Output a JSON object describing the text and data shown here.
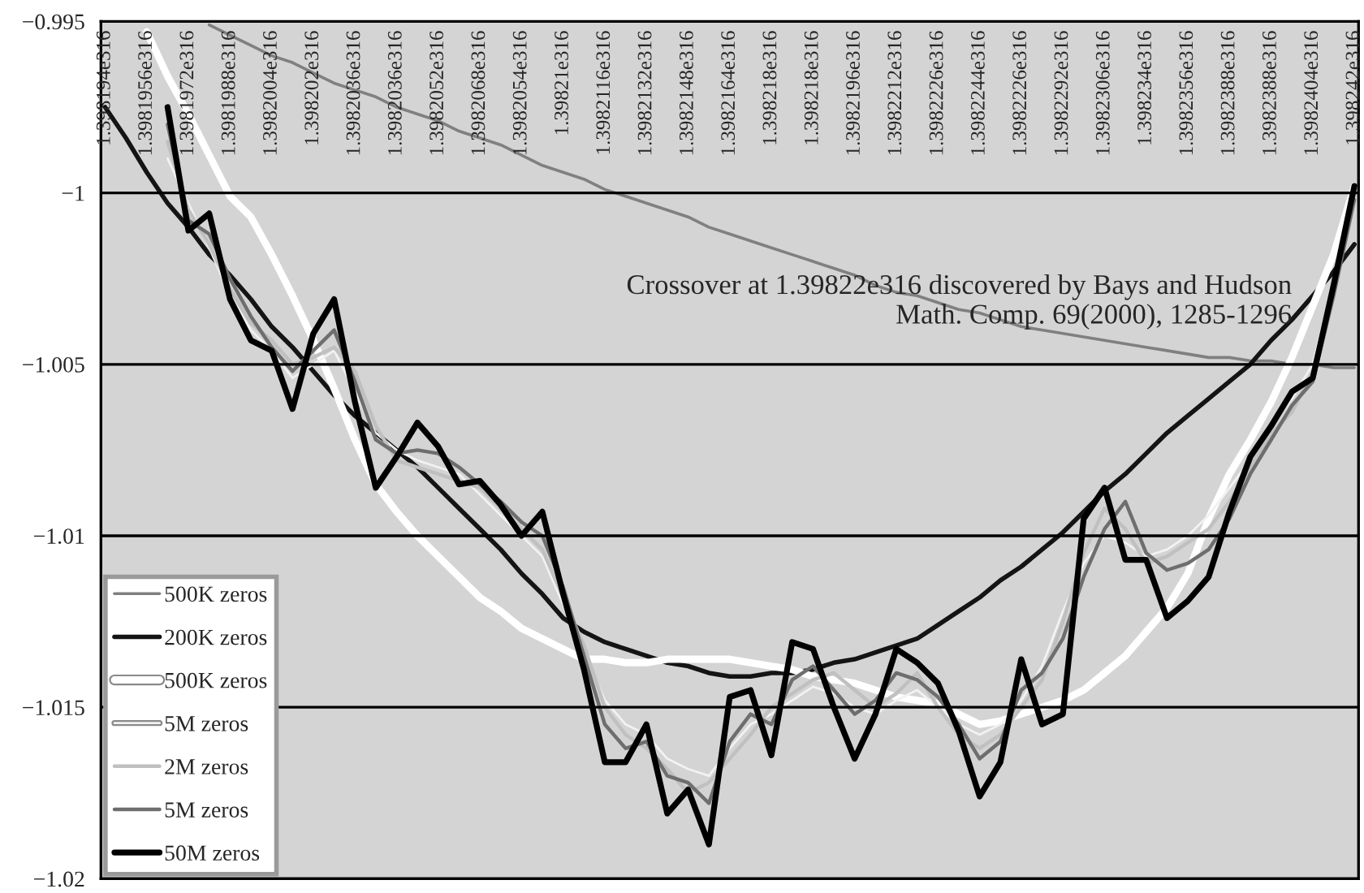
{
  "chart_data": {
    "type": "line",
    "categories": [
      "1.398194e316",
      null,
      "1.3981956e316",
      null,
      "1.3981972e316",
      null,
      "1.3981988e316",
      null,
      "1.3982004e316",
      null,
      "1.398202e316",
      null,
      "1.3982036e316",
      null,
      "1.3982036e316",
      null,
      "1.3982052e316",
      null,
      "1.3982068e316",
      null,
      "1.3982054e316",
      null,
      "1.39821e316",
      null,
      "1.3982116e316",
      null,
      "1.3982132e316",
      null,
      "1.3982148e316",
      null,
      "1.3982164e316",
      null,
      "1.398218e316",
      null,
      "1.398218e316",
      null,
      "1.3982196e316",
      null,
      "1.3982212e316",
      null,
      "1.3982226e316",
      null,
      "1.3982244e316",
      null,
      "1.3982226e316",
      null,
      "1.3982292e316",
      null,
      "1.3982306e316",
      null,
      "1.398234e316",
      null,
      "1.3982356e316",
      null,
      "1.3982388e316",
      null,
      "1.3982388e316",
      null,
      "1.3982404e316",
      null,
      "1.398242e316"
    ],
    "series": [
      {
        "name": "500K zeros",
        "color": "#808080",
        "values": [
          null,
          null,
          null,
          null,
          null,
          -0.9951,
          -0.9954,
          -0.9957,
          -0.996,
          -0.9962,
          -0.9965,
          -0.9968,
          -0.997,
          -0.9972,
          -0.9975,
          -0.9977,
          -0.9979,
          -0.9982,
          -0.9984,
          -0.9986,
          -0.9989,
          -0.9992,
          -0.9994,
          -0.9996,
          -0.9999,
          -1.0001,
          -1.0003,
          -1.0005,
          -1.0007,
          -1.001,
          -1.0012,
          -1.0014,
          -1.0016,
          -1.0018,
          -1.002,
          -1.0022,
          -1.0024,
          -1.0027,
          -1.0029,
          -1.003,
          -1.0032,
          -1.0034,
          -1.0035,
          -1.0037,
          -1.0039,
          -1.004,
          -1.0041,
          -1.0042,
          -1.0043,
          -1.0044,
          -1.0045,
          -1.0046,
          -1.0047,
          -1.0048,
          -1.0048,
          -1.0049,
          -1.0049,
          -1.005,
          -1.005,
          -1.0051,
          -1.0051
        ]
      },
      {
        "name": "200K zeros",
        "color": "#141414",
        "values": [
          -0.9975,
          -0.9984,
          -0.9994,
          -1.0003,
          -1.001,
          -1.0018,
          -1.0024,
          -1.0031,
          -1.0039,
          -1.0045,
          -1.0052,
          -1.0059,
          -1.0065,
          -1.007,
          -1.0075,
          -1.008,
          -1.0086,
          -1.0092,
          -1.0098,
          -1.0104,
          -1.0111,
          -1.0117,
          -1.0124,
          -1.0128,
          -1.0131,
          -1.0133,
          -1.0135,
          -1.0137,
          -1.0138,
          -1.014,
          -1.0141,
          -1.0141,
          -1.014,
          -1.014,
          -1.0139,
          -1.0137,
          -1.0136,
          -1.0134,
          -1.0132,
          -1.013,
          -1.0126,
          -1.0122,
          -1.0118,
          -1.0113,
          -1.0109,
          -1.0104,
          -1.0099,
          -1.0093,
          -1.0087,
          -1.0082,
          -1.0076,
          -1.007,
          -1.0065,
          -1.006,
          -1.0055,
          -1.005,
          -1.0043,
          -1.0037,
          -1.003,
          -1.0023,
          -1.0015
        ]
      },
      {
        "name": "500K zeros",
        "color": "#ffffff",
        "values": [
          null,
          null,
          -0.9953,
          -0.9966,
          -0.9977,
          -0.9989,
          -1.0001,
          -1.0007,
          -1.0018,
          -1.003,
          -1.0043,
          -1.0057,
          -1.0072,
          -1.0085,
          -1.0093,
          -1.01,
          -1.0106,
          -1.0112,
          -1.0118,
          -1.0122,
          -1.0127,
          -1.013,
          -1.0133,
          -1.0136,
          -1.0136,
          -1.0137,
          -1.0137,
          -1.0136,
          -1.0136,
          -1.0136,
          -1.0136,
          -1.0137,
          -1.0138,
          -1.0139,
          -1.0141,
          -1.0142,
          -1.0143,
          -1.0145,
          -1.0147,
          -1.0148,
          -1.0149,
          -1.0152,
          -1.0155,
          -1.0154,
          -1.0152,
          -1.015,
          -1.0148,
          -1.0145,
          -1.014,
          -1.0135,
          -1.0128,
          -1.0121,
          -1.0111,
          -1.0095,
          -1.0082,
          -1.0072,
          -1.0061,
          -1.0048,
          -1.0033,
          -1.0018,
          -0.9998
        ]
      },
      {
        "name": "5M zeros",
        "color": "#f2f2f2",
        "values": [
          null,
          null,
          null,
          -0.999,
          -1.0003,
          -1.0016,
          -1.003,
          -1.004,
          -1.0046,
          -1.0054,
          -1.005,
          -1.0046,
          -1.0058,
          -1.007,
          -1.0075,
          -1.0078,
          -1.008,
          -1.0082,
          -1.0088,
          -1.0094,
          -1.01,
          -1.0106,
          -1.012,
          -1.0134,
          -1.0148,
          -1.0155,
          -1.0158,
          -1.0165,
          -1.0168,
          -1.017,
          -1.0162,
          -1.0155,
          -1.0152,
          -1.0148,
          -1.0144,
          -1.0146,
          -1.015,
          -1.0152,
          -1.0148,
          -1.0145,
          -1.015,
          -1.0155,
          -1.0158,
          -1.0155,
          -1.0148,
          -1.0138,
          -1.0122,
          -1.0108,
          -1.01,
          -1.0102,
          -1.0106,
          -1.0104,
          -1.01,
          -1.0094,
          -1.0086,
          -1.0078,
          -1.0068,
          -1.006,
          -1.005,
          -1.0026,
          -0.9999
        ]
      },
      {
        "name": "2M zeros",
        "color": "#c0c0c0",
        "values": [
          null,
          null,
          null,
          -0.9985,
          -1.0005,
          -1.0015,
          -1.0028,
          -1.0038,
          -1.0043,
          -1.005,
          -1.0048,
          -1.0045,
          -1.0052,
          -1.0068,
          -1.0078,
          -1.008,
          -1.0082,
          -1.0084,
          -1.0086,
          -1.0092,
          -1.0098,
          -1.0104,
          -1.0118,
          -1.0132,
          -1.015,
          -1.0158,
          -1.0162,
          -1.0168,
          -1.0175,
          -1.0172,
          -1.0165,
          -1.0158,
          -1.015,
          -1.0146,
          -1.0142,
          -1.014,
          -1.0145,
          -1.015,
          -1.0146,
          -1.014,
          -1.015,
          -1.0158,
          -1.0162,
          -1.0158,
          -1.015,
          -1.0142,
          -1.0125,
          -1.0105,
          -1.0092,
          -1.0098,
          -1.0108,
          -1.0106,
          -1.0102,
          -1.0098,
          -1.009,
          -1.008,
          -1.007,
          -1.0064,
          -1.0052,
          -1.0028,
          -1.0
        ]
      },
      {
        "name": "5M zeros",
        "color": "#6e6e6e",
        "values": [
          null,
          null,
          null,
          -0.998,
          -1.0008,
          -1.0012,
          -1.0025,
          -1.0036,
          -1.0045,
          -1.0052,
          -1.0046,
          -1.004,
          -1.0055,
          -1.0072,
          -1.0076,
          -1.0075,
          -1.0076,
          -1.008,
          -1.0085,
          -1.009,
          -1.0096,
          -1.01,
          -1.0115,
          -1.0135,
          -1.0155,
          -1.0162,
          -1.016,
          -1.017,
          -1.0172,
          -1.0178,
          -1.016,
          -1.0152,
          -1.0155,
          -1.0142,
          -1.0138,
          -1.0145,
          -1.0152,
          -1.0148,
          -1.014,
          -1.0142,
          -1.0147,
          -1.0155,
          -1.0165,
          -1.016,
          -1.0145,
          -1.014,
          -1.013,
          -1.0112,
          -1.0098,
          -1.009,
          -1.0105,
          -1.011,
          -1.0108,
          -1.0104,
          -1.0095,
          -1.0082,
          -1.0072,
          -1.0062,
          -1.0055,
          -1.003,
          -1.0002
        ]
      },
      {
        "name": "50M zeros",
        "color": "#000000",
        "values": [
          null,
          null,
          null,
          -0.9975,
          -1.0011,
          -1.0006,
          -1.0031,
          -1.0043,
          -1.0046,
          -1.0063,
          -1.0041,
          -1.0031,
          -1.0061,
          -1.0086,
          -1.0077,
          -1.0067,
          -1.0074,
          -1.0085,
          -1.0084,
          -1.0091,
          -1.01,
          -1.0093,
          -1.0117,
          -1.0139,
          -1.0166,
          -1.0166,
          -1.0155,
          -1.0181,
          -1.0174,
          -1.019,
          -1.0147,
          -1.0145,
          -1.0164,
          -1.0131,
          -1.0133,
          -1.015,
          -1.0165,
          -1.0152,
          -1.0133,
          -1.0137,
          -1.0143,
          -1.0157,
          -1.0176,
          -1.0166,
          -1.0136,
          -1.0155,
          -1.0152,
          -1.0095,
          -1.0086,
          -1.0107,
          -1.0107,
          -1.0124,
          -1.0119,
          -1.0112,
          -1.0093,
          -1.0077,
          -1.0068,
          -1.0058,
          -1.0054,
          -1.0027,
          -0.9998
        ]
      }
    ],
    "ylim": [
      -1.02,
      -0.995
    ],
    "yticks": [
      {
        "value": -1.02,
        "label": "−1.02"
      },
      {
        "value": -1.015,
        "label": "−1.015"
      },
      {
        "value": -1.01,
        "label": "−1.01"
      },
      {
        "value": -1.005,
        "label": "−1.005"
      },
      {
        "value": -1.0,
        "label": "−1"
      },
      {
        "value": -0.995,
        "label": "−0.995"
      }
    ],
    "grid": "y",
    "legend": "bottom left",
    "line_style": "solid",
    "annotations": [
      "Crossover at 1.39822e316 discovered by Bays and Hudson\nMath. Comp. 69(2000), 1285-1296"
    ]
  }
}
